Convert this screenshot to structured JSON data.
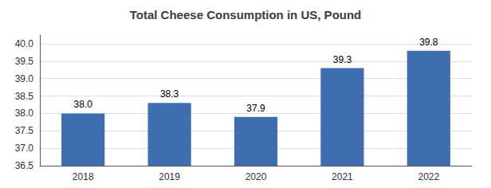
{
  "chart_data": {
    "type": "bar",
    "title": "Total Cheese Consumption in US, Pound",
    "categories": [
      "2018",
      "2019",
      "2020",
      "2021",
      "2022"
    ],
    "values": [
      38.0,
      38.3,
      37.9,
      39.3,
      39.8
    ],
    "value_labels": [
      "38.0",
      "38.3",
      "37.9",
      "39.3",
      "39.8"
    ],
    "data_labels": true,
    "color": "#3E6DB0",
    "ylim": [
      36.5,
      40.25
    ],
    "yticks": [
      36.5,
      {
        "value": 37,
        "label": "37.0"
      },
      37.5,
      {
        "value": 38,
        "label": "38.0"
      },
      38.5,
      {
        "value": 39,
        "label": "39.0"
      },
      39.5,
      {
        "value": 40,
        "label": "40.0"
      }
    ],
    "grid": true
  }
}
